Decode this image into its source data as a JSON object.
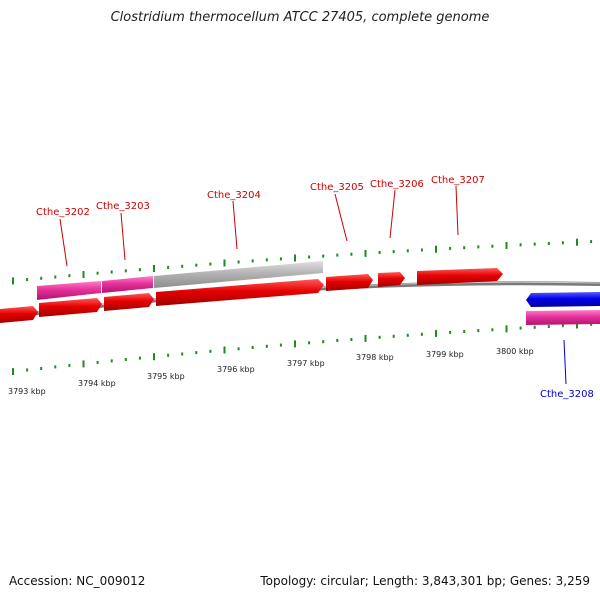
{
  "title": "Clostridium thermocellum ATCC 27405, complete genome",
  "footer": {
    "accession": "Accession: NC_009012",
    "topology": "Topology: circular; Length: 3,843,301 bp; Genes: 3,259"
  },
  "colors": {
    "gene_red": "#e60000",
    "gene_pink": "#e6329b",
    "gene_gray": "#b4b4b4",
    "gene_blue": "#0000e6",
    "backbone": "#808080",
    "tick": "#1f8a1f",
    "label_red": "#cc0000",
    "label_blue": "#0000cc",
    "scale_text": "#222222"
  },
  "scale_labels": [
    "3793 kbp",
    "3794 kbp",
    "3795 kbp",
    "3796 kbp",
    "3797 kbp",
    "3798 kbp",
    "3799 kbp",
    "3800 kbp"
  ],
  "gene_labels": [
    {
      "text": "Cthe_3202",
      "strand": "forward"
    },
    {
      "text": "Cthe_3203",
      "strand": "forward"
    },
    {
      "text": "Cthe_3204",
      "strand": "forward"
    },
    {
      "text": "Cthe_3205",
      "strand": "forward"
    },
    {
      "text": "Cthe_3206",
      "strand": "forward"
    },
    {
      "text": "Cthe_3207",
      "strand": "forward"
    },
    {
      "text": "Cthe_3208",
      "strand": "reverse"
    }
  ]
}
